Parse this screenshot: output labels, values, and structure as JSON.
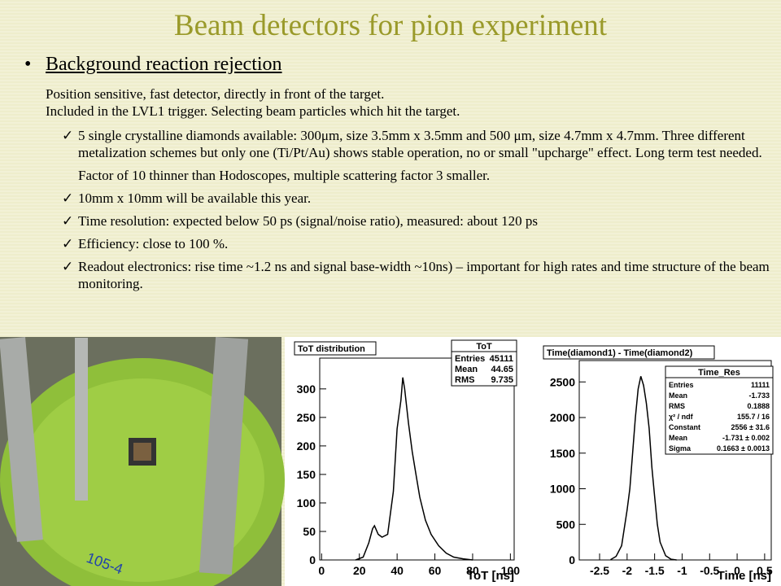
{
  "title": "Beam detectors for pion experiment",
  "section": {
    "heading": "Background reaction rejection",
    "paragraphs": [
      "Position sensitive, fast detector, directly in front of the target.",
      "Included in the LVL1 trigger. Selecting beam particles which hit the target."
    ],
    "items": [
      {
        "text": "5 single crystalline diamonds available: 300μm, size 3.5mm x 3.5mm and 500 μm, size 4.7mm x 4.7mm. Three different metalization schemes but only one (Ti/Pt/Au) shows stable operation, no or small \"upcharge\" effect. Long term test needed.",
        "note": "Factor of 10 thinner than Hodoscopes, multiple scattering factor 3 smaller."
      },
      {
        "text": "10mm x 10mm will be available this year."
      },
      {
        "text": "Time resolution: expected below 50 ps (signal/noise ratio), measured: about 120 ps"
      },
      {
        "text": "Efficiency: close to 100 %."
      },
      {
        "text": "Readout electronics: rise time ~1.2 ns and signal base-width ~10ns) – important for high rates and time structure of the beam monitoring."
      }
    ]
  },
  "plots": [
    {
      "title": "ToT distribution",
      "stats_title": "ToT",
      "stats": [
        [
          "Entries",
          "45111"
        ],
        [
          "Mean",
          "44.65"
        ],
        [
          "RMS",
          "9.735"
        ]
      ],
      "x_label": "ToT [ns]",
      "xlim": [
        -1,
        102
      ],
      "xticks": [
        0,
        20,
        40,
        60,
        80,
        100
      ],
      "ylim": [
        0,
        354
      ],
      "yticks": [
        0,
        50,
        100,
        150,
        200,
        250,
        300
      ],
      "x": [
        18,
        22,
        25,
        27,
        28,
        30,
        32,
        35,
        38,
        40,
        42,
        43,
        44,
        46,
        48,
        50,
        52,
        55,
        58,
        62,
        66,
        70,
        75,
        80
      ],
      "y": [
        0,
        5,
        30,
        55,
        60,
        45,
        40,
        45,
        120,
        230,
        280,
        320,
        300,
        240,
        190,
        150,
        110,
        70,
        45,
        25,
        12,
        5,
        2,
        0
      ]
    },
    {
      "title": "Time(diamond1) - Time(diamond2)",
      "stats_title": "Time_Res",
      "stats": [
        [
          "Entries",
          "11111"
        ],
        [
          "Mean",
          "-1.733"
        ],
        [
          "RMS",
          "0.1888"
        ],
        [
          "χ² / ndf",
          "155.7 / 16"
        ],
        [
          "Constant",
          "2556 ± 31.6"
        ],
        [
          "Mean",
          "-1.731 ± 0.002"
        ],
        [
          "Sigma",
          "0.1663 ± 0.0013"
        ]
      ],
      "x_label": "Time [ns]",
      "xlim": [
        -2.87,
        0.62
      ],
      "xticks": [
        -2.5,
        -2,
        -1.5,
        -1,
        -0.5,
        0,
        0.5
      ],
      "ylim": [
        0,
        2800
      ],
      "yticks": [
        0,
        500,
        1000,
        1500,
        2000,
        2500
      ],
      "x": [
        -2.3,
        -2.2,
        -2.1,
        -2.0,
        -1.95,
        -1.9,
        -1.85,
        -1.8,
        -1.75,
        -1.7,
        -1.65,
        -1.6,
        -1.55,
        -1.5,
        -1.45,
        -1.4,
        -1.3,
        -1.2,
        -1.1
      ],
      "y": [
        5,
        50,
        200,
        700,
        1000,
        1500,
        2000,
        2400,
        2580,
        2450,
        2200,
        1850,
        1300,
        900,
        500,
        250,
        60,
        10,
        0
      ]
    }
  ]
}
